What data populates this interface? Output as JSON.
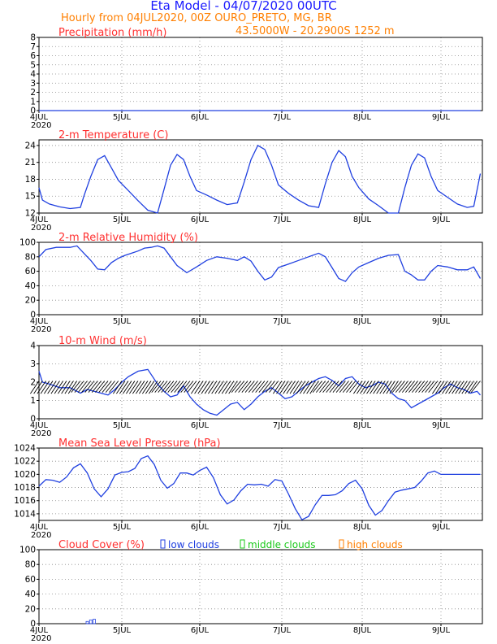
{
  "header": {
    "title": "Eta Model - 04/07/2020 00UTC",
    "subtitle": "Hourly from 04JUL2020, 00Z   OURO_PRETO, MG, BR",
    "coords": "43.5000W - 20.2900S    1252  m"
  },
  "colors": {
    "title": "#1a1aff",
    "header": "#ff7f00",
    "panel_title": "#ff3030",
    "series": "#2040e0",
    "grid": "#888888",
    "mid": "#19c819",
    "high": "#ff7f00"
  },
  "x_axis": {
    "ticks": [
      "4JUL",
      "5JUL",
      "6JUL",
      "7JUL",
      "8JUL",
      "9JUL"
    ],
    "year": "2020",
    "hours_total": 132
  },
  "chart_data": [
    {
      "type": "line",
      "id": "precip",
      "title": "Precipitation (mm/h)",
      "ylim": [
        0,
        8
      ],
      "yticks": [
        "0",
        "1",
        "2",
        "3",
        "4",
        "5",
        "6",
        "7",
        "8"
      ],
      "x_hours": [
        0,
        132
      ],
      "values": [
        0,
        0
      ]
    },
    {
      "type": "line",
      "id": "temp",
      "title": "2-m Temperature (C)",
      "ylim": [
        12,
        25
      ],
      "yticks": [
        "12",
        "15",
        "18",
        "21",
        "24"
      ],
      "x_hours": [
        0,
        1,
        3,
        6,
        9,
        12,
        13,
        15,
        17,
        19,
        21,
        23,
        26,
        29,
        32,
        35,
        37,
        39,
        41,
        43,
        45,
        47,
        50,
        53,
        56,
        59,
        61,
        63,
        65,
        67,
        69,
        71,
        74,
        77,
        80,
        83,
        85,
        87,
        89,
        91,
        93,
        95,
        98,
        101,
        104,
        107,
        109,
        111,
        113,
        115,
        117,
        119,
        122,
        125,
        128,
        130,
        132
      ],
      "values": [
        16.5,
        14.3,
        13.6,
        13.1,
        12.8,
        13.0,
        15.0,
        18.5,
        21.5,
        22.2,
        20.0,
        17.8,
        16.0,
        14.2,
        12.5,
        11.8,
        16.2,
        20.5,
        22.4,
        21.5,
        18.5,
        16.0,
        15.2,
        14.3,
        13.5,
        13.8,
        17.5,
        21.5,
        24.0,
        23.3,
        20.5,
        17.0,
        15.5,
        14.3,
        13.3,
        13.0,
        17.2,
        21.0,
        23.1,
        22.0,
        18.5,
        16.5,
        14.5,
        13.3,
        12.0,
        11.9,
        16.5,
        20.5,
        22.5,
        21.8,
        18.5,
        16.0,
        14.8,
        13.6,
        13.0,
        13.2,
        19.0
      ]
    },
    {
      "type": "line",
      "id": "rh",
      "title": "2-m Relative Humidity (%)",
      "ylim": [
        0,
        100
      ],
      "yticks": [
        "0",
        "20",
        "40",
        "60",
        "80",
        "100"
      ],
      "x_hours": [
        0,
        2,
        5,
        9,
        11,
        13,
        15,
        17,
        19,
        21,
        23,
        25,
        27,
        29,
        31,
        33,
        35,
        37,
        39,
        41,
        44,
        47,
        50,
        53,
        56,
        59,
        61,
        63,
        65,
        67,
        69,
        71,
        74,
        77,
        80,
        83,
        85,
        87,
        89,
        91,
        93,
        95,
        98,
        101,
        104,
        107,
        109,
        111,
        113,
        115,
        117,
        119,
        122,
        125,
        128,
        130,
        132
      ],
      "values": [
        80,
        90,
        93,
        93,
        95,
        85,
        75,
        63,
        62,
        72,
        78,
        82,
        85,
        88,
        92,
        93,
        95,
        92,
        80,
        68,
        58,
        66,
        75,
        80,
        78,
        75,
        80,
        74,
        60,
        48,
        52,
        65,
        70,
        75,
        80,
        85,
        80,
        65,
        50,
        46,
        58,
        66,
        72,
        78,
        82,
        83,
        60,
        55,
        48,
        48,
        60,
        68,
        66,
        62,
        62,
        66,
        50
      ]
    },
    {
      "type": "line",
      "id": "wind",
      "title": "10-m Wind (m/s)",
      "ylim": [
        0,
        4
      ],
      "yticks": [
        "0",
        "1",
        "2",
        "3",
        "4"
      ],
      "x_hours": [
        0,
        1,
        3,
        6,
        9,
        12,
        14,
        16,
        18,
        20,
        22,
        24,
        26,
        29,
        32,
        35,
        37,
        39,
        41,
        43,
        45,
        47,
        49,
        51,
        53,
        55,
        57,
        59,
        61,
        63,
        65,
        67,
        69,
        71,
        73,
        75,
        77,
        79,
        81,
        83,
        85,
        87,
        89,
        91,
        93,
        95,
        97,
        99,
        101,
        103,
        105,
        107,
        109,
        111,
        113,
        115,
        117,
        119,
        121,
        123,
        125,
        127,
        129,
        131,
        132
      ],
      "values": [
        2.6,
        2.0,
        1.9,
        1.7,
        1.7,
        1.4,
        1.6,
        1.5,
        1.4,
        1.3,
        1.6,
        2.0,
        2.3,
        2.6,
        2.7,
        1.9,
        1.5,
        1.2,
        1.3,
        1.8,
        1.2,
        0.8,
        0.5,
        0.3,
        0.2,
        0.5,
        0.8,
        0.9,
        0.5,
        0.8,
        1.2,
        1.5,
        1.7,
        1.4,
        1.1,
        1.2,
        1.5,
        1.8,
        2.0,
        2.2,
        2.3,
        2.1,
        1.8,
        2.2,
        2.3,
        1.9,
        1.7,
        1.8,
        2.0,
        1.9,
        1.4,
        1.1,
        1.0,
        0.6,
        0.8,
        1.0,
        1.2,
        1.4,
        1.7,
        1.9,
        1.7,
        1.6,
        1.4,
        1.5,
        1.3
      ]
    },
    {
      "type": "line",
      "id": "mslp",
      "title": "Mean Sea Level Pressure (hPa)",
      "ylim": [
        1013,
        1024
      ],
      "yticks": [
        "1014",
        "1016",
        "1018",
        "1020",
        "1022",
        "1024"
      ],
      "x_hours": [
        0,
        2,
        4,
        6,
        8,
        10,
        12,
        14,
        16,
        18,
        20,
        22,
        24,
        26,
        28,
        30,
        32,
        34,
        36,
        38,
        40,
        42,
        44,
        46,
        48,
        50,
        52,
        54,
        56,
        58,
        60,
        62,
        64,
        66,
        68,
        70,
        72,
        74,
        76,
        78,
        80,
        82,
        84,
        86,
        88,
        90,
        92,
        94,
        96,
        98,
        100,
        102,
        104,
        106,
        108,
        110,
        112,
        114,
        116,
        118,
        120,
        122,
        124,
        126,
        128,
        130,
        132
      ],
      "values": [
        1018.2,
        1019.2,
        1019.1,
        1018.8,
        1019.6,
        1021.0,
        1021.6,
        1020.2,
        1017.8,
        1016.6,
        1017.8,
        1019.9,
        1020.3,
        1020.4,
        1020.9,
        1022.4,
        1022.8,
        1021.5,
        1019.1,
        1017.9,
        1018.6,
        1020.2,
        1020.2,
        1019.9,
        1020.6,
        1021.1,
        1019.5,
        1016.9,
        1015.5,
        1016.1,
        1017.5,
        1018.5,
        1018.4,
        1018.5,
        1018.2,
        1019.2,
        1019.0,
        1017.0,
        1014.8,
        1013.1,
        1013.6,
        1015.4,
        1016.8,
        1016.8,
        1016.9,
        1017.5,
        1018.6,
        1019.1,
        1017.8,
        1015.3,
        1013.8,
        1014.5,
        1016.0,
        1017.3,
        1017.6,
        1017.8,
        1018.0,
        1019.0,
        1020.2,
        1020.5,
        1020.0,
        1020.0,
        1020.0,
        1020.0,
        1020.0,
        1020.0,
        1020.0
      ]
    },
    {
      "type": "bar",
      "id": "cloud",
      "title": "Cloud Cover (%)",
      "ylim": [
        0,
        100
      ],
      "yticks": [
        "0",
        "20",
        "40",
        "60",
        "80",
        "100"
      ],
      "legend": [
        "low clouds",
        "middle clouds",
        "high clouds"
      ],
      "series": [
        {
          "name": "low clouds",
          "x_hours": [
            14,
            15,
            16
          ],
          "values": [
            3,
            5,
            6
          ]
        }
      ]
    }
  ]
}
